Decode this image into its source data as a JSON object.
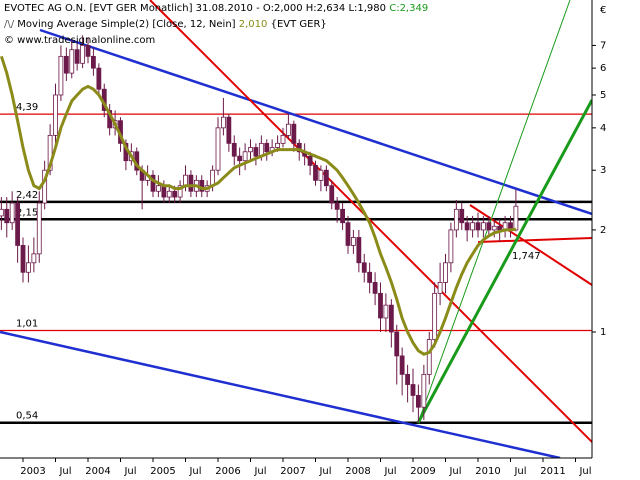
{
  "chart_data": {
    "type": "candlestick",
    "title": "EVOTEC AG O.N. [EVT GER  Monatlich] 31.08.2010 - O:2,000 H:2,634 L:1,980",
    "close_label": "C:2,349",
    "close_label_color": "#1a9a1a",
    "copyright": "© www.tradesignalonline.com",
    "currency": "€",
    "log_y": true,
    "xlim": [
      2002.646,
      2011.754
    ],
    "xticks": [
      2003,
      {
        "value": 2003.5,
        "label": "Jul"
      },
      2004,
      {
        "value": 2004.5,
        "label": "Jul"
      },
      2005,
      {
        "value": 2005.5,
        "label": "Jul"
      },
      2006,
      {
        "value": 2006.5,
        "label": "Jul"
      },
      2007,
      {
        "value": 2007.5,
        "label": "Jul"
      },
      2008,
      {
        "value": 2008.5,
        "label": "Jul"
      },
      2009,
      {
        "value": 2009.5,
        "label": "Jul"
      },
      2010,
      {
        "value": 2010.5,
        "label": "Jul"
      },
      2011,
      {
        "value": 2011.5,
        "label": "Jul"
      }
    ],
    "ylim": [
      0.425,
      9.53
    ],
    "yticks": [
      1,
      2,
      3,
      4,
      5,
      6,
      7
    ],
    "up_color": "#ffffff",
    "down_color": "#6b1a4a",
    "x": [
      2002.667,
      2002.75,
      2002.833,
      2002.917,
      2003.0,
      2003.083,
      2003.167,
      2003.25,
      2003.333,
      2003.417,
      2003.5,
      2003.583,
      2003.667,
      2003.75,
      2003.833,
      2003.917,
      2004.0,
      2004.083,
      2004.167,
      2004.25,
      2004.333,
      2004.417,
      2004.5,
      2004.583,
      2004.667,
      2004.75,
      2004.833,
      2004.917,
      2005.0,
      2005.083,
      2005.167,
      2005.25,
      2005.333,
      2005.417,
      2005.5,
      2005.583,
      2005.667,
      2005.75,
      2005.833,
      2005.917,
      2006.0,
      2006.083,
      2006.167,
      2006.25,
      2006.333,
      2006.417,
      2006.5,
      2006.583,
      2006.667,
      2006.75,
      2006.833,
      2006.917,
      2007.0,
      2007.083,
      2007.167,
      2007.25,
      2007.333,
      2007.417,
      2007.5,
      2007.583,
      2007.667,
      2007.75,
      2007.833,
      2007.917,
      2008.0,
      2008.083,
      2008.167,
      2008.25,
      2008.333,
      2008.417,
      2008.5,
      2008.583,
      2008.667,
      2008.75,
      2008.833,
      2008.917,
      2009.0,
      2009.083,
      2009.167,
      2009.25,
      2009.333,
      2009.417,
      2009.5,
      2009.583,
      2009.667,
      2009.75,
      2009.833,
      2009.917,
      2010.0,
      2010.083,
      2010.167,
      2010.25,
      2010.333,
      2010.417,
      2010.5,
      2010.583
    ],
    "open": [
      2.2,
      2.3,
      2.1,
      2.4,
      1.8,
      1.5,
      1.6,
      1.7,
      2.4,
      3.0,
      3.8,
      5.0,
      6.5,
      5.8,
      6.8,
      6.2,
      7.0,
      6.5,
      6.0,
      5.2,
      4.5,
      4.0,
      4.2,
      3.6,
      3.2,
      3.4,
      3.0,
      2.8,
      2.9,
      2.6,
      2.7,
      2.5,
      2.6,
      2.5,
      2.7,
      2.9,
      2.6,
      2.8,
      2.6,
      2.7,
      3.0,
      4.0,
      4.3,
      3.6,
      3.3,
      3.2,
      3.4,
      3.5,
      3.3,
      3.6,
      3.4,
      3.5,
      3.6,
      3.8,
      4.1,
      3.6,
      3.4,
      3.3,
      3.1,
      2.8,
      3.0,
      2.7,
      2.4,
      2.3,
      2.1,
      1.8,
      1.9,
      1.6,
      1.5,
      1.4,
      1.3,
      1.1,
      1.2,
      1.0,
      0.85,
      0.75,
      0.7,
      0.65,
      0.6,
      0.75,
      0.95,
      1.3,
      1.4,
      1.6,
      2.0,
      2.3,
      2.1,
      2.0,
      2.1,
      2.0,
      2.1,
      2.0,
      2.05,
      2.0,
      2.1,
      2.0
    ],
    "high": [
      2.5,
      2.5,
      2.6,
      2.5,
      1.9,
      1.8,
      1.9,
      2.6,
      3.2,
      4.1,
      5.4,
      7.0,
      6.9,
      7.3,
      7.2,
      7.5,
      7.4,
      6.9,
      6.2,
      5.4,
      4.7,
      4.5,
      4.3,
      3.7,
      3.6,
      3.5,
      3.1,
      3.1,
      3.0,
      2.9,
      2.8,
      2.7,
      2.7,
      2.8,
      3.1,
      3.0,
      2.9,
      2.9,
      2.8,
      3.1,
      4.3,
      4.9,
      4.4,
      3.8,
      3.5,
      3.6,
      3.7,
      3.6,
      3.8,
      3.7,
      3.7,
      3.8,
      4.0,
      4.4,
      4.2,
      3.7,
      3.6,
      3.4,
      3.2,
      3.1,
      3.1,
      2.8,
      2.5,
      2.4,
      2.2,
      2.0,
      2.0,
      1.7,
      1.6,
      1.5,
      1.4,
      1.3,
      1.25,
      1.05,
      0.9,
      0.8,
      0.78,
      0.7,
      0.8,
      1.0,
      1.4,
      1.6,
      1.7,
      2.1,
      2.45,
      2.4,
      2.2,
      2.2,
      2.25,
      2.2,
      2.2,
      2.15,
      2.15,
      2.2,
      2.2,
      2.634
    ],
    "low": [
      2.0,
      1.9,
      2.0,
      1.6,
      1.4,
      1.4,
      1.5,
      1.6,
      2.3,
      2.9,
      3.6,
      4.8,
      5.5,
      5.6,
      5.9,
      6.0,
      6.2,
      5.7,
      5.0,
      4.3,
      3.8,
      3.8,
      3.4,
      3.0,
      3.1,
      2.9,
      2.3,
      2.7,
      2.5,
      2.5,
      2.4,
      2.4,
      2.4,
      2.4,
      2.6,
      2.5,
      2.5,
      2.5,
      2.5,
      2.6,
      2.9,
      3.8,
      3.4,
      3.1,
      2.9,
      3.0,
      3.2,
      3.1,
      3.2,
      3.2,
      3.3,
      3.4,
      3.5,
      3.7,
      3.4,
      3.2,
      3.1,
      2.9,
      2.7,
      2.6,
      2.6,
      2.3,
      2.1,
      2.0,
      1.7,
      1.7,
      1.5,
      1.4,
      1.3,
      1.2,
      1.0,
      1.0,
      0.9,
      0.7,
      0.65,
      0.62,
      0.58,
      0.54,
      0.55,
      0.7,
      0.9,
      1.2,
      1.3,
      1.5,
      1.9,
      2.0,
      1.85,
      1.9,
      1.9,
      1.9,
      1.9,
      1.9,
      1.85,
      1.9,
      1.9,
      1.98
    ],
    "close": [
      2.3,
      2.1,
      2.4,
      1.8,
      1.5,
      1.6,
      1.7,
      2.4,
      3.0,
      3.8,
      5.0,
      6.5,
      5.8,
      6.8,
      6.2,
      7.0,
      6.5,
      6.0,
      5.2,
      4.5,
      4.0,
      4.2,
      3.6,
      3.2,
      3.4,
      3.0,
      2.8,
      2.9,
      2.6,
      2.7,
      2.5,
      2.6,
      2.5,
      2.7,
      2.9,
      2.6,
      2.8,
      2.6,
      2.7,
      3.0,
      4.0,
      4.3,
      3.6,
      3.3,
      3.2,
      3.4,
      3.5,
      3.3,
      3.6,
      3.4,
      3.5,
      3.6,
      3.8,
      4.1,
      3.6,
      3.4,
      3.3,
      3.1,
      2.8,
      3.0,
      2.7,
      2.4,
      2.3,
      2.1,
      1.8,
      1.9,
      1.6,
      1.5,
      1.4,
      1.3,
      1.1,
      1.2,
      1.0,
      0.85,
      0.75,
      0.7,
      0.65,
      0.6,
      0.75,
      0.95,
      1.3,
      1.4,
      1.6,
      2.0,
      2.3,
      2.1,
      2.0,
      2.1,
      2.0,
      2.1,
      2.0,
      2.05,
      2.0,
      2.1,
      2.0,
      2.349
    ],
    "series": [
      {
        "name": "Moving Average Simple(2) [Close, 12, Nein]",
        "color": "#8b8b1a",
        "legend_value": "2,010",
        "legend_suffix": "{EVT GER}",
        "values": [
          6.5,
          5.8,
          5.0,
          4.2,
          3.5,
          3.0,
          2.7,
          2.65,
          2.8,
          3.1,
          3.5,
          4.0,
          4.4,
          4.8,
          5.0,
          5.2,
          5.3,
          5.2,
          5.0,
          4.7,
          4.4,
          4.1,
          3.8,
          3.5,
          3.3,
          3.1,
          3.0,
          2.9,
          2.8,
          2.75,
          2.7,
          2.7,
          2.65,
          2.65,
          2.7,
          2.7,
          2.7,
          2.65,
          2.65,
          2.7,
          2.75,
          2.85,
          2.95,
          3.05,
          3.1,
          3.15,
          3.2,
          3.25,
          3.3,
          3.35,
          3.4,
          3.45,
          3.45,
          3.45,
          3.45,
          3.45,
          3.4,
          3.35,
          3.3,
          3.25,
          3.2,
          3.1,
          3.0,
          2.85,
          2.7,
          2.55,
          2.4,
          2.25,
          2.1,
          1.9,
          1.7,
          1.55,
          1.4,
          1.25,
          1.1,
          1.0,
          0.93,
          0.88,
          0.86,
          0.87,
          0.92,
          1.0,
          1.1,
          1.22,
          1.35,
          1.48,
          1.6,
          1.7,
          1.8,
          1.87,
          1.92,
          1.96,
          1.98,
          2.0,
          2.0,
          2.01
        ]
      }
    ],
    "hlines": [
      {
        "value": 4.39,
        "label": "4,39",
        "color": "#e00000"
      },
      {
        "value": 2.42,
        "label": "2,42",
        "color": "#000000"
      },
      {
        "value": 2.15,
        "label": "2,15",
        "color": "#000000"
      },
      {
        "value": 1.01,
        "label": "1,01",
        "color": "#e00000"
      },
      {
        "value": 0.54,
        "label": "0,54",
        "color": "#000000"
      }
    ],
    "annotation": "1,747",
    "annotation_color": "#1a9a1a"
  }
}
